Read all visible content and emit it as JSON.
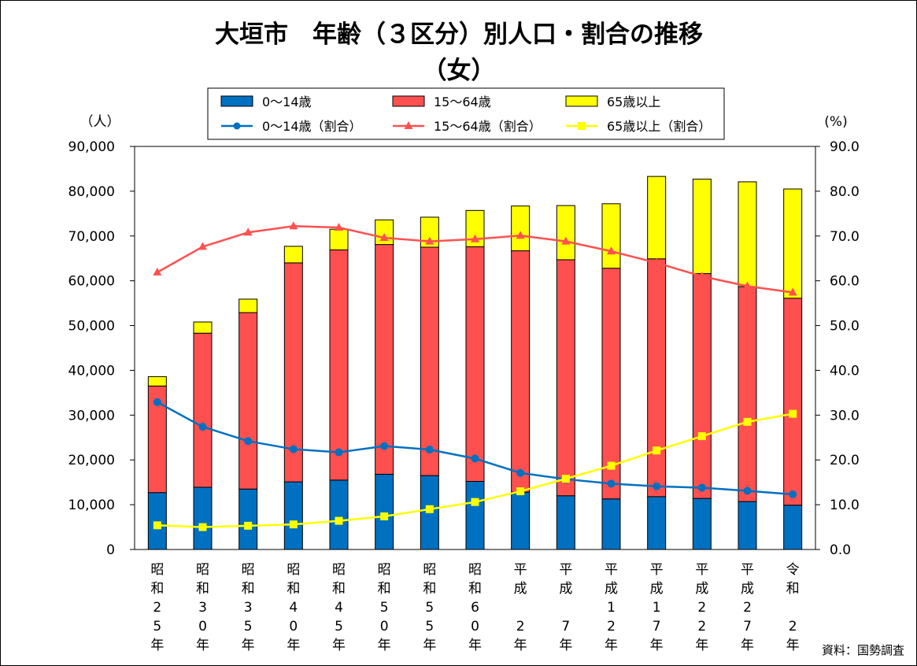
{
  "chart_data": {
    "type": "bar",
    "title": "大垣市　年齢（３区分）別人口・割合の推移",
    "subtitle": "（女）",
    "y_left_unit": "（人）",
    "y_right_unit": "(%)",
    "y_left_ticks": [
      "0",
      "10,000",
      "20,000",
      "30,000",
      "40,000",
      "50,000",
      "60,000",
      "70,000",
      "80,000",
      "90,000"
    ],
    "y_right_ticks": [
      "0.0",
      "10.0",
      "20.0",
      "30.0",
      "40.0",
      "50.0",
      "60.0",
      "70.0",
      "80.0",
      "90.0"
    ],
    "ylim": [
      0,
      90000
    ],
    "y2lim": [
      0,
      90
    ],
    "categories": [
      [
        "昭",
        "和",
        "2",
        "5",
        "年"
      ],
      [
        "昭",
        "和",
        "3",
        "0",
        "年"
      ],
      [
        "昭",
        "和",
        "3",
        "5",
        "年"
      ],
      [
        "昭",
        "和",
        "4",
        "0",
        "年"
      ],
      [
        "昭",
        "和",
        "4",
        "5",
        "年"
      ],
      [
        "昭",
        "和",
        "5",
        "0",
        "年"
      ],
      [
        "昭",
        "和",
        "5",
        "5",
        "年"
      ],
      [
        "昭",
        "和",
        "6",
        "0",
        "年"
      ],
      [
        "平",
        "成",
        "",
        "2",
        "年"
      ],
      [
        "平",
        "成",
        "",
        "7",
        "年"
      ],
      [
        "平",
        "成",
        "1",
        "2",
        "年"
      ],
      [
        "平",
        "成",
        "1",
        "7",
        "年"
      ],
      [
        "平",
        "成",
        "2",
        "2",
        "年"
      ],
      [
        "平",
        "成",
        "2",
        "7",
        "年"
      ],
      [
        "令",
        "和",
        "",
        "2",
        "年"
      ]
    ],
    "bar_series": [
      {
        "name": "0～14歳",
        "color": "#0070C0",
        "values": [
          12700,
          13900,
          13500,
          15100,
          15500,
          16800,
          16500,
          15200,
          12800,
          12000,
          11300,
          11800,
          11400,
          10700,
          9900
        ]
      },
      {
        "name": "15～64歳",
        "color": "#FF5050",
        "values": [
          23800,
          34400,
          39400,
          48900,
          51400,
          51300,
          51000,
          52400,
          53900,
          52700,
          51500,
          53100,
          50200,
          48000,
          46200
        ]
      },
      {
        "name": "65歳以上",
        "color": "#FFFF00",
        "values": [
          2100,
          2500,
          3000,
          3700,
          4600,
          5500,
          6700,
          8100,
          10000,
          12100,
          14400,
          18400,
          21100,
          23400,
          24400
        ]
      }
    ],
    "line_series": [
      {
        "name": "0～14歳（割合）",
        "color": "#0070C0",
        "marker": "circle",
        "values": [
          32.9,
          27.4,
          24.2,
          22.4,
          21.7,
          23.1,
          22.3,
          20.3,
          17.1,
          15.7,
          14.7,
          14.1,
          13.8,
          13.1,
          12.3
        ]
      },
      {
        "name": "15～64歳（割合）",
        "color": "#FF5050",
        "marker": "triangle",
        "values": [
          61.9,
          67.6,
          70.8,
          72.2,
          71.9,
          69.6,
          68.8,
          69.3,
          70.1,
          68.8,
          66.6,
          64.0,
          61.0,
          58.8,
          57.4
        ]
      },
      {
        "name": "65歳以上（割合）",
        "color": "#FFFF00",
        "marker": "square",
        "values": [
          5.4,
          5.0,
          5.3,
          5.6,
          6.4,
          7.4,
          9.0,
          10.6,
          13.0,
          15.8,
          18.7,
          22.1,
          25.3,
          28.5,
          30.3
        ]
      }
    ],
    "legend_placement": "top-center",
    "grid": false,
    "source_note": "資料：国勢調査"
  }
}
